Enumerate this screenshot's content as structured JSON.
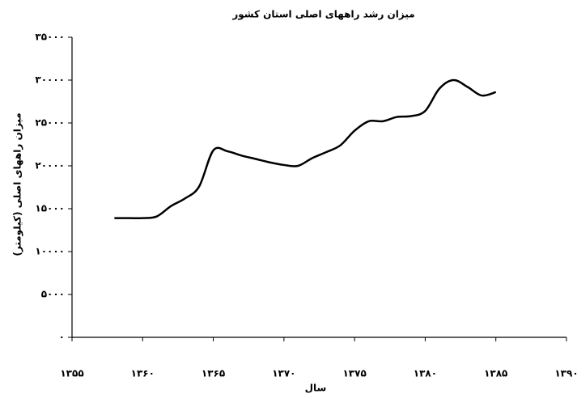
{
  "chart_data": {
    "type": "line",
    "title": "میزان رشد راههای اصلی استان کشور",
    "xlabel": "سال",
    "ylabel": "میزان راههای اصلی  (کیلومتر)",
    "x": [
      1358,
      1359,
      1360,
      1361,
      1362,
      1363,
      1364,
      1365,
      1366,
      1367,
      1368,
      1369,
      1370,
      1371,
      1372,
      1373,
      1374,
      1375,
      1376,
      1377,
      1378,
      1379,
      1380,
      1381,
      1382,
      1383,
      1384,
      1385
    ],
    "series": [
      {
        "name": "میزان راههای اصلی",
        "color": "#000000",
        "values": [
          13900,
          13900,
          13900,
          14100,
          15300,
          16200,
          17600,
          21800,
          21700,
          21200,
          20800,
          20400,
          20100,
          20000,
          20900,
          21600,
          22400,
          24100,
          25200,
          25200,
          25700,
          25800,
          26400,
          29000,
          30000,
          29200,
          28200,
          28600
        ]
      }
    ],
    "xlim": [
      1355,
      1390
    ],
    "xticks": [
      {
        "value": 1355,
        "label": "۱۳۵۵"
      },
      {
        "value": 1360,
        "label": "۱۳۶۰"
      },
      {
        "value": 1365,
        "label": "۱۳۶۵"
      },
      {
        "value": 1370,
        "label": "۱۳۷۰"
      },
      {
        "value": 1375,
        "label": "۱۳۷۵"
      },
      {
        "value": 1380,
        "label": "۱۳۸۰"
      },
      {
        "value": 1385,
        "label": "۱۳۸۵"
      },
      {
        "value": 1390,
        "label": "۱۳۹۰"
      }
    ],
    "ylim": [
      0,
      35000
    ],
    "yticks": [
      {
        "value": 0,
        "label": "۰"
      },
      {
        "value": 5000,
        "label": "۵۰۰۰"
      },
      {
        "value": 10000,
        "label": "۱۰۰۰۰"
      },
      {
        "value": 15000,
        "label": "۱۵۰۰۰"
      },
      {
        "value": 20000,
        "label": "۲۰۰۰۰"
      },
      {
        "value": 25000,
        "label": "۲۵۰۰۰"
      },
      {
        "value": 30000,
        "label": "۳۰۰۰۰"
      },
      {
        "value": 35000,
        "label": "۳۵۰۰۰"
      }
    ],
    "grid": false
  }
}
